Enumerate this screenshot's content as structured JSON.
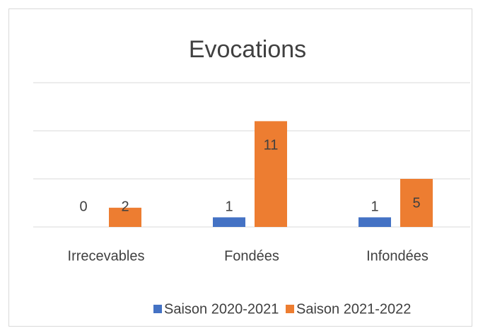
{
  "chart_data": {
    "type": "bar",
    "title": "Evocations",
    "categories": [
      "Irrecevables",
      "Fondées",
      "Infondées"
    ],
    "series": [
      {
        "name": "Saison 2020-2021",
        "color": "#4472c4",
        "values": [
          0,
          1,
          1
        ]
      },
      {
        "name": "Saison 2021-2022",
        "color": "#ed7d31",
        "values": [
          2,
          11,
          5
        ]
      }
    ],
    "ylim": [
      0,
      15
    ],
    "yticks": [
      0,
      5,
      10,
      15
    ],
    "grid": true,
    "legend": "bottom"
  }
}
